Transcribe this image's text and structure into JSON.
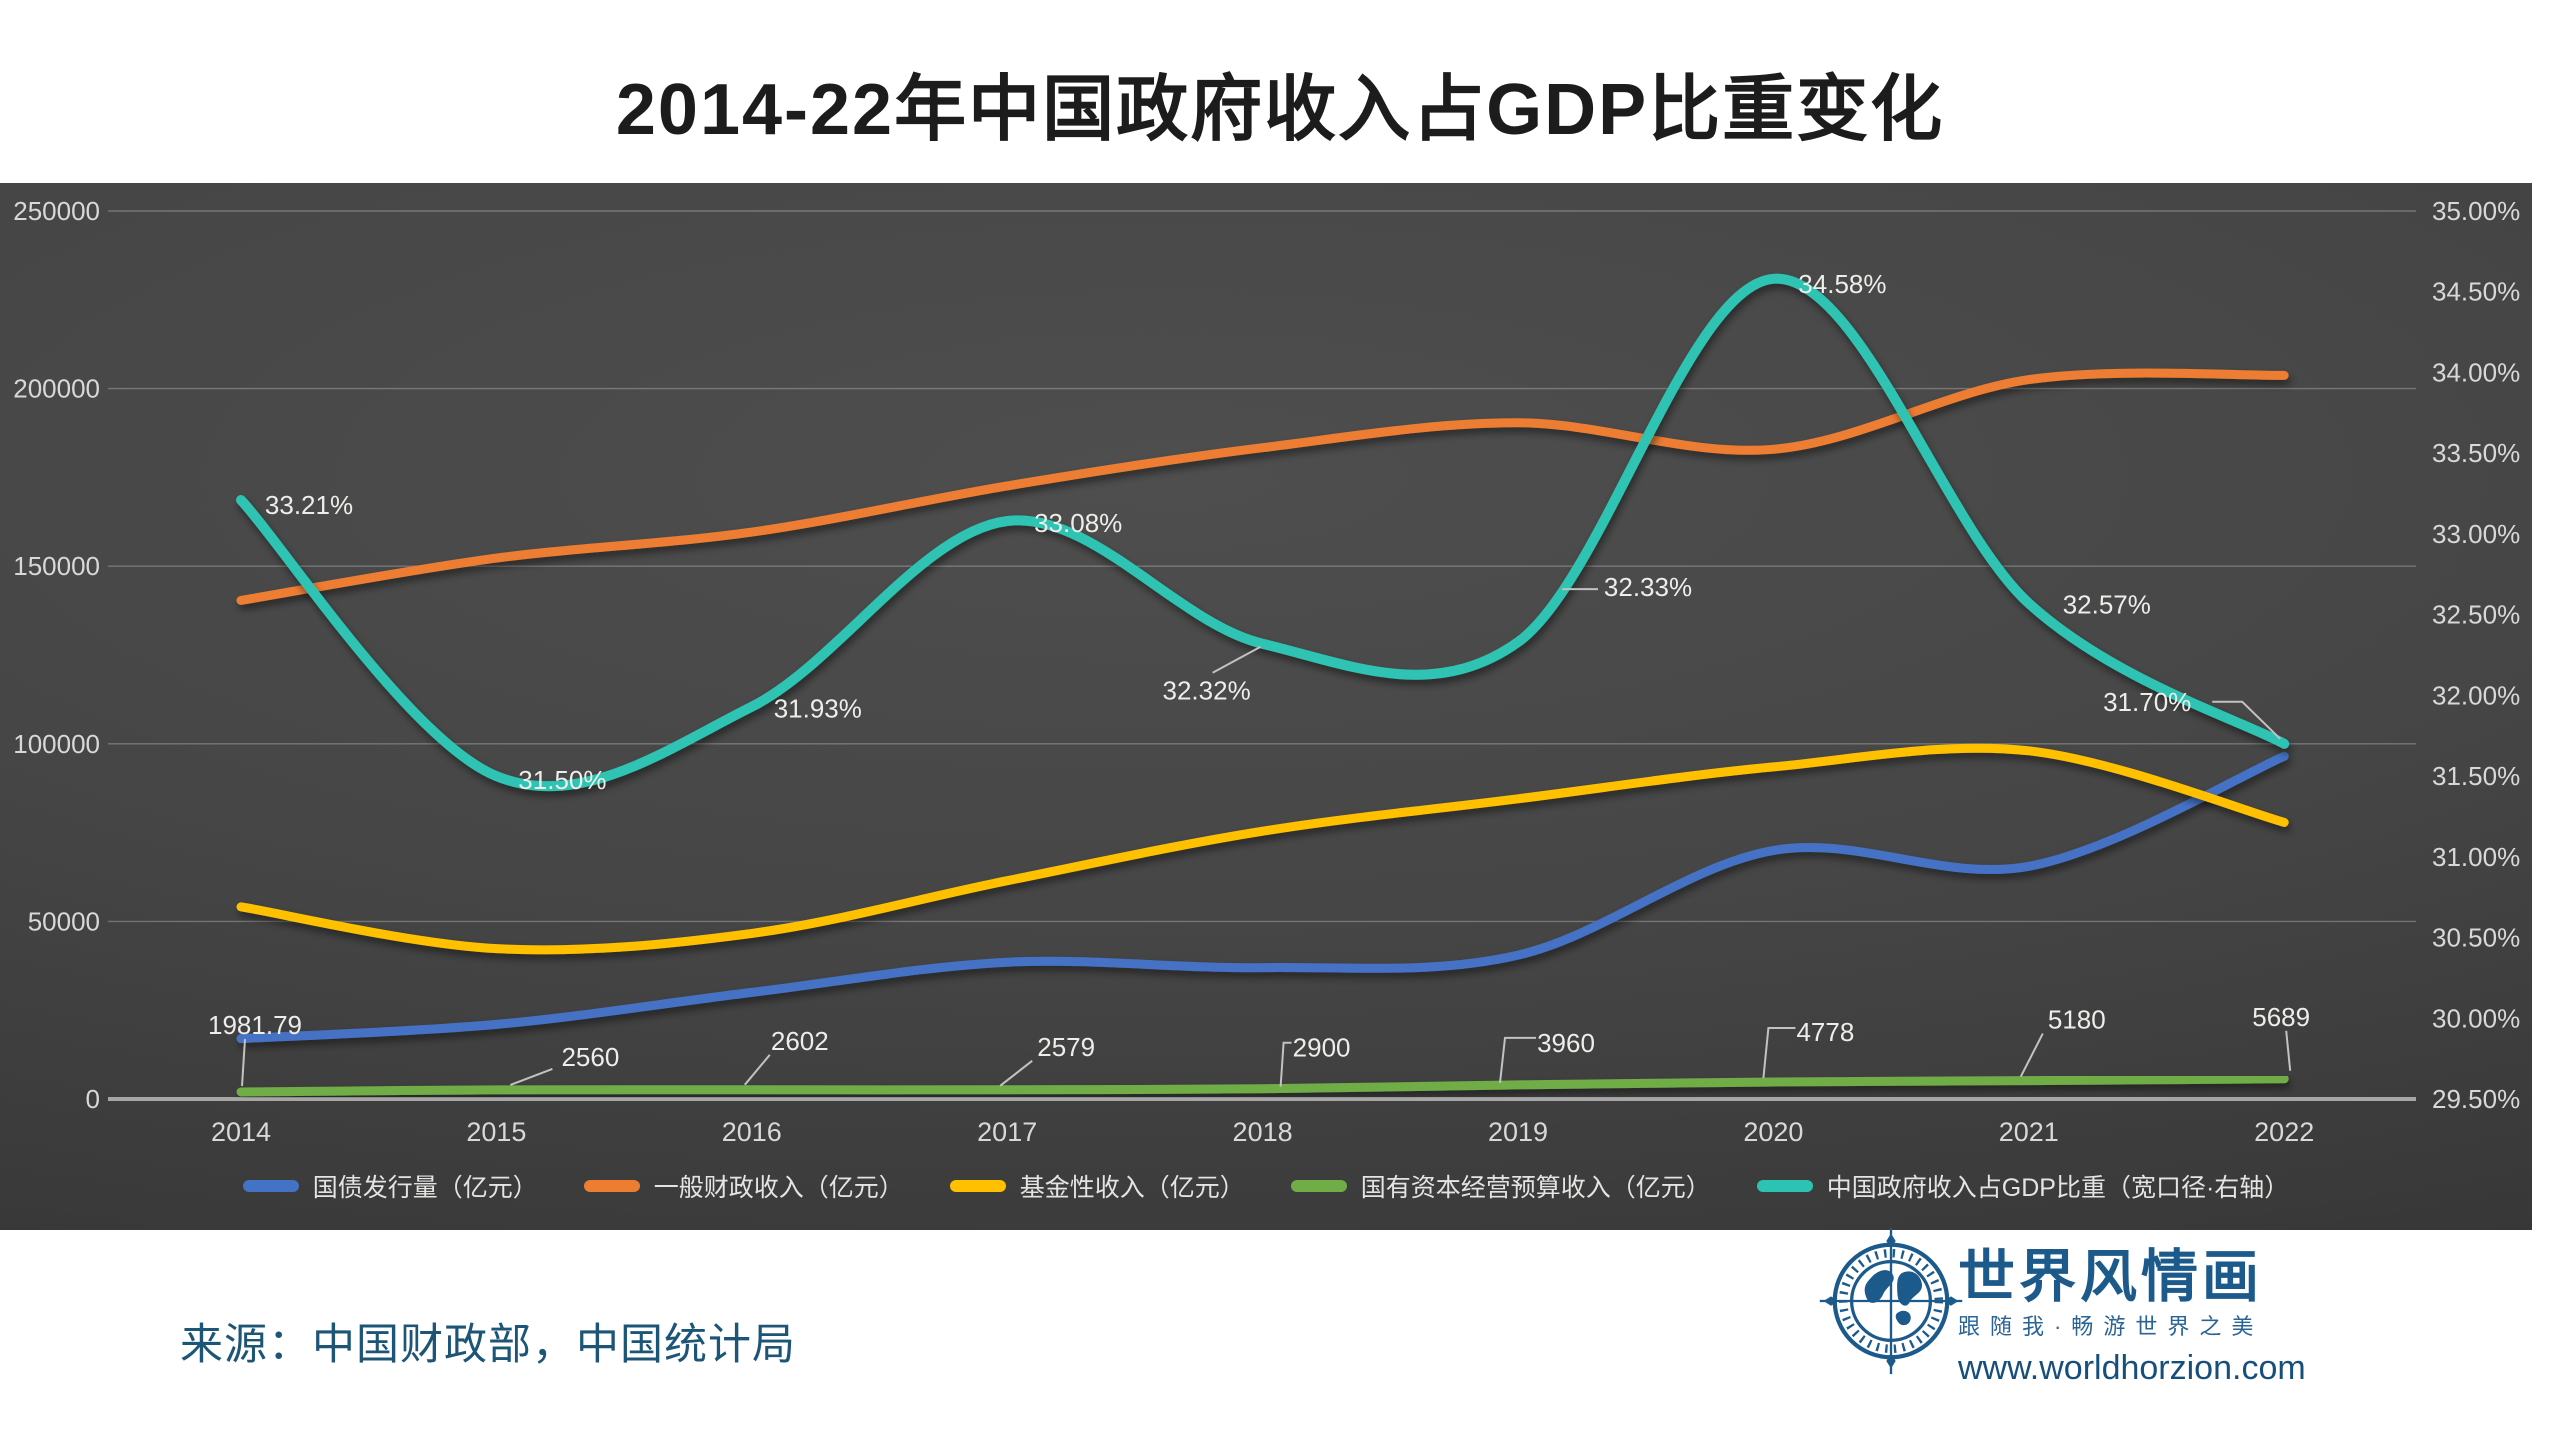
{
  "header": {
    "title": "2014-22年中国政府收入占GDP比重变化"
  },
  "footer": {
    "source": "来源：中国财政部，中国统计局",
    "logo": {
      "brand": "世界风情画",
      "tagline": "跟随我·畅游世界之美",
      "website": "www.worldhorzion.com"
    }
  },
  "chart_data": {
    "type": "line",
    "title": "2014-22年中国政府收入占GDP比重变化",
    "categories": [
      "2014",
      "2015",
      "2016",
      "2017",
      "2018",
      "2019",
      "2020",
      "2021",
      "2022"
    ],
    "left_axis": {
      "min": 0,
      "max": 250000,
      "step": 50000,
      "tick_labels": [
        "0",
        "50000",
        "100000",
        "150000",
        "200000",
        "250000"
      ]
    },
    "right_axis": {
      "min": 29.5,
      "max": 35.0,
      "step": 0.5,
      "tick_labels": [
        "29.50%",
        "30.00%",
        "30.50%",
        "31.00%",
        "31.50%",
        "32.00%",
        "32.50%",
        "33.00%",
        "33.50%",
        "34.00%",
        "34.50%",
        "35.00%"
      ]
    },
    "grid": {
      "horizontal": true,
      "vertical": false
    },
    "legend_position": "bottom",
    "series": [
      {
        "name": "国债发行量（亿元）",
        "axis": "left",
        "color": "#4472C4",
        "values": [
          17000,
          21000,
          30000,
          38500,
          37000,
          40500,
          70000,
          65500,
          96500
        ]
      },
      {
        "name": "一般财政收入（亿元）",
        "axis": "left",
        "color": "#ED7D31",
        "values": [
          140370,
          152269,
          159605,
          172593,
          183360,
          190382,
          182914,
          202539,
          203703
        ]
      },
      {
        "name": "基金性收入（亿元）",
        "axis": "left",
        "color": "#FFC000",
        "values": [
          54093,
          42330,
          46619,
          61462,
          75405,
          84516,
          93489,
          98024,
          77879
        ]
      },
      {
        "name": "国有资本经营预算收入（亿元）",
        "axis": "left",
        "color": "#70AD47",
        "values": [
          1981.79,
          2560,
          2602,
          2579,
          2900,
          3960,
          4778,
          5180,
          5689
        ],
        "point_labels": [
          "1981.79",
          "2560",
          "2602",
          "2579",
          "2900",
          "3960",
          "4778",
          "5180",
          "5689"
        ]
      },
      {
        "name": "中国政府收入占GDP比重（宽口径·右轴）",
        "axis": "right",
        "color": "#2DC3B2",
        "values": [
          33.21,
          31.5,
          31.93,
          33.08,
          32.32,
          32.33,
          34.58,
          32.57,
          31.7
        ],
        "point_labels": [
          "33.21%",
          "31.50%",
          "31.93%",
          "33.08%",
          "32.32%",
          "32.33%",
          "34.58%",
          "32.57%",
          "31.70%"
        ]
      }
    ]
  }
}
